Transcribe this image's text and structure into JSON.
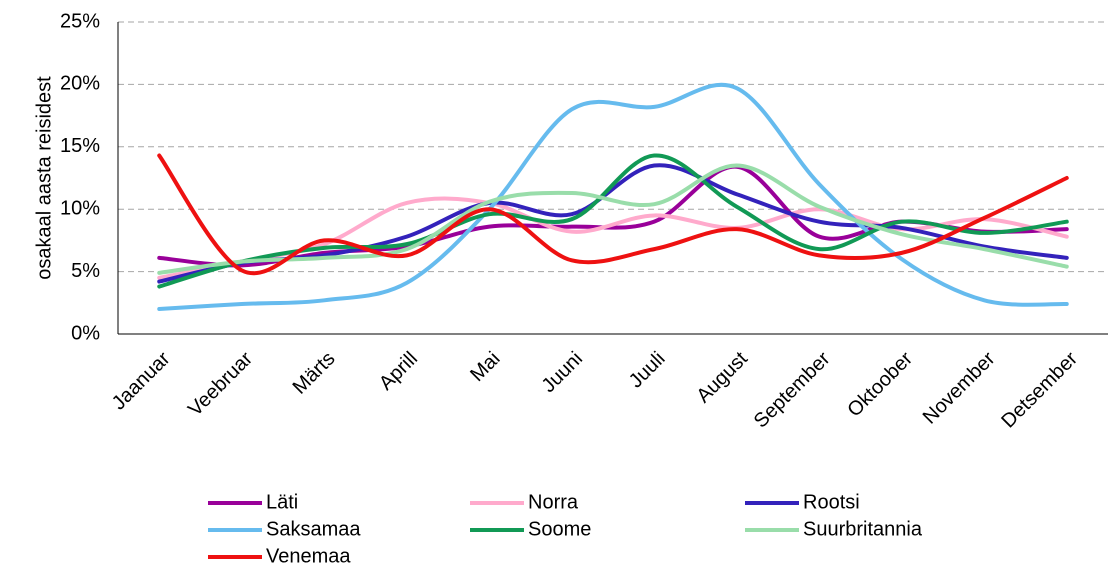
{
  "chart_data": {
    "type": "line",
    "y_label": "osakaal aasta reisidest",
    "categories": [
      "Jaanuar",
      "Veebruar",
      "Märts",
      "Aprill",
      "Mai",
      "Juuni",
      "Juuli",
      "August",
      "September",
      "Oktoober",
      "November",
      "Detsember"
    ],
    "series": [
      {
        "name": "Läti",
        "color": "#990099",
        "values": [
          6.1,
          5.5,
          6.5,
          7.0,
          8.6,
          8.6,
          9.0,
          13.4,
          7.8,
          9.0,
          8.2,
          8.4
        ]
      },
      {
        "name": "Norra",
        "color": "#ffaacc",
        "values": [
          4.5,
          5.8,
          7.2,
          10.5,
          10.5,
          8.2,
          9.5,
          8.5,
          10.0,
          8.4,
          9.2,
          7.8
        ]
      },
      {
        "name": "Rootsi",
        "color": "#3322bb",
        "values": [
          4.2,
          5.7,
          6.3,
          7.8,
          10.5,
          9.6,
          13.5,
          11.2,
          9.0,
          8.5,
          7.0,
          6.1
        ]
      },
      {
        "name": "Saksamaa",
        "color": "#66bbee",
        "values": [
          2.0,
          2.4,
          2.7,
          4.1,
          10.0,
          18.0,
          18.2,
          19.7,
          12.0,
          6.0,
          2.7,
          2.4
        ]
      },
      {
        "name": "Soome",
        "color": "#119955",
        "values": [
          3.8,
          5.8,
          6.9,
          7.2,
          9.6,
          9.2,
          14.3,
          10.2,
          6.8,
          9.0,
          8.1,
          9.0
        ]
      },
      {
        "name": "Suurbritannia",
        "color": "#99ddaa",
        "values": [
          4.9,
          5.8,
          6.1,
          6.8,
          10.6,
          11.3,
          10.4,
          13.5,
          10.2,
          8.0,
          6.8,
          5.4
        ]
      },
      {
        "name": "Venemaa",
        "color": "#ee1111",
        "values": [
          14.3,
          5.1,
          7.5,
          6.3,
          10.0,
          5.9,
          6.8,
          8.4,
          6.3,
          6.5,
          9.3,
          12.5
        ]
      }
    ],
    "ylim": [
      0,
      25
    ],
    "yticks": [
      {
        "value": 0,
        "label": "0%"
      },
      {
        "value": 5,
        "label": "5%"
      },
      {
        "value": 10,
        "label": "10%"
      },
      {
        "value": 15,
        "label": "15%"
      },
      {
        "value": 20,
        "label": "20%"
      },
      {
        "value": 25,
        "label": "25%"
      }
    ],
    "grid": true,
    "legend": "bottom"
  }
}
